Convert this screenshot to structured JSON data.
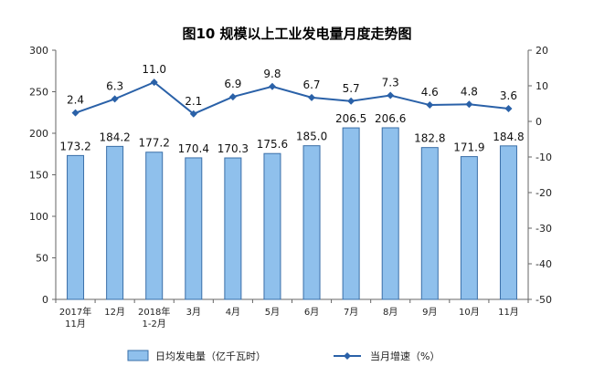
{
  "chart_data": {
    "type": "bar",
    "title": "图10  规模以上工业发电量月度走势图",
    "categories": [
      [
        "2017年",
        "11月"
      ],
      [
        "12月"
      ],
      [
        "2018年",
        "1-2月"
      ],
      [
        "3月"
      ],
      [
        "4月"
      ],
      [
        "5月"
      ],
      [
        "6月"
      ],
      [
        "7月"
      ],
      [
        "8月"
      ],
      [
        "9月"
      ],
      [
        "10月"
      ],
      [
        "11月"
      ]
    ],
    "series": [
      {
        "name": "日均发电量（亿千瓦时）",
        "type": "bar",
        "axis": "left",
        "color": "#8fc0ec",
        "values": [
          173.2,
          184.2,
          177.2,
          170.4,
          170.3,
          175.6,
          185.0,
          206.5,
          206.6,
          182.8,
          171.9,
          184.8
        ],
        "labels": [
          "173.2",
          "184.2",
          "177.2",
          "170.4",
          "170.3",
          "175.6",
          "185.0",
          "206.5",
          "206.6",
          "182.8",
          "171.9",
          "184.8"
        ]
      },
      {
        "name": "当月增速（%）",
        "type": "line",
        "axis": "right",
        "color": "#2a61a8",
        "values": [
          2.4,
          6.3,
          11.0,
          2.1,
          6.9,
          9.8,
          6.7,
          5.7,
          7.3,
          4.6,
          4.8,
          3.6
        ],
        "labels": [
          "2.4",
          "6.3",
          "11.0",
          "2.1",
          "6.9",
          "9.8",
          "6.7",
          "5.7",
          "7.3",
          "4.6",
          "4.8",
          "3.6"
        ]
      }
    ],
    "y_left": {
      "min": 0,
      "max": 300,
      "step": 50,
      "ticks": [
        "0",
        "50",
        "100",
        "150",
        "200",
        "250",
        "300"
      ]
    },
    "y_right": {
      "min": -50,
      "max": 20,
      "step": 10,
      "ticks": [
        "-50",
        "-40",
        "-30",
        "-20",
        "-10",
        "0",
        "10",
        "20"
      ]
    },
    "grid": false,
    "legend_position": "bottom"
  }
}
